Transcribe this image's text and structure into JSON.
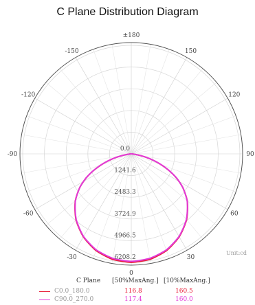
{
  "chart_data": {
    "type": "polar",
    "title": "C Plane Distribution Diagram",
    "unit": "Unit:cd",
    "angle_labels": [
      "±180",
      "150",
      "120",
      "90",
      "60",
      "30",
      "0",
      "-30",
      "-60",
      "-90",
      "-120",
      "-150"
    ],
    "radial_ticks": [
      "0.0",
      "1241.6",
      "2483.3",
      "3724.9",
      "4966.5",
      "6208.2"
    ],
    "rmax": 6208.2,
    "legend_headers": {
      "plane": "C Plane",
      "half": "[50%MaxAng.]",
      "tenth": "[10%MaxAng.]"
    },
    "series": [
      {
        "name": "C0.0_180.0",
        "color": "#e8203a",
        "angle50": "116.8",
        "angle10": "160.5",
        "profile": [
          [
            0,
            6208.2
          ],
          [
            10,
            6130
          ],
          [
            20,
            5890
          ],
          [
            30,
            5480
          ],
          [
            40,
            4920
          ],
          [
            50,
            4180
          ],
          [
            57,
            3500
          ],
          [
            62,
            2920
          ],
          [
            66,
            2380
          ],
          [
            70,
            1820
          ],
          [
            74,
            1270
          ],
          [
            78,
            720
          ],
          [
            81,
            330
          ],
          [
            84,
            110
          ],
          [
            90,
            0
          ]
        ]
      },
      {
        "name": "C90.0_270.0",
        "color": "#e23ad8",
        "angle50": "117.4",
        "angle10": "160.0",
        "profile": [
          [
            0,
            6150
          ],
          [
            10,
            6070
          ],
          [
            20,
            5850
          ],
          [
            30,
            5460
          ],
          [
            40,
            4900
          ],
          [
            50,
            4170
          ],
          [
            57,
            3500
          ],
          [
            62,
            2930
          ],
          [
            66,
            2390
          ],
          [
            70,
            1830
          ],
          [
            74,
            1280
          ],
          [
            78,
            730
          ],
          [
            81,
            340
          ],
          [
            84,
            110
          ],
          [
            90,
            0
          ]
        ]
      }
    ]
  }
}
